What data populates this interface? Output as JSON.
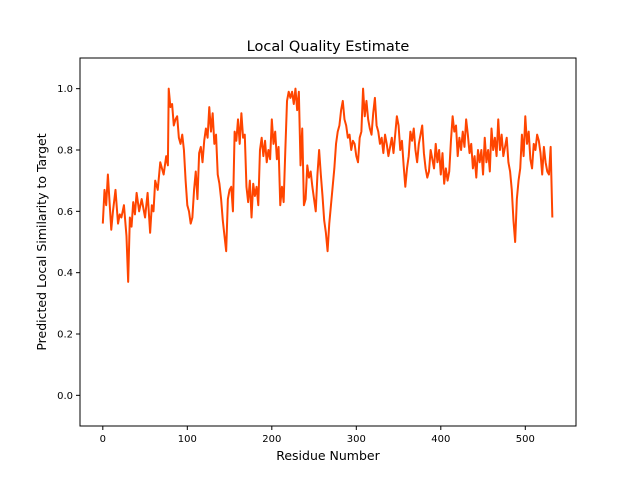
{
  "chart_data": {
    "type": "line",
    "title": "Local Quality Estimate",
    "xlabel": "Residue Number",
    "ylabel": "Predicted Local Similarity to Target",
    "xlim": [
      -27,
      560
    ],
    "ylim": [
      -0.1,
      1.1
    ],
    "xticks": [
      0,
      100,
      200,
      300,
      400,
      500
    ],
    "yticks": [
      0.0,
      0.2,
      0.4,
      0.6,
      0.8,
      1.0
    ],
    "series": [
      {
        "color": "#ff4500",
        "x": [
          0,
          2,
          4,
          6,
          8,
          10,
          12,
          15,
          18,
          20,
          22,
          25,
          28,
          30,
          32,
          34,
          36,
          38,
          40,
          43,
          46,
          50,
          53,
          56,
          58,
          60,
          62,
          65,
          68,
          70,
          72,
          75,
          77,
          78,
          80,
          82,
          84,
          86,
          88,
          90,
          92,
          94,
          96,
          98,
          100,
          102,
          104,
          106,
          108,
          110,
          112,
          114,
          116,
          118,
          120,
          122,
          124,
          126,
          128,
          130,
          132,
          134,
          136,
          138,
          140,
          142,
          144,
          146,
          148,
          150,
          152,
          154,
          156,
          158,
          160,
          162,
          164,
          166,
          168,
          170,
          172,
          174,
          176,
          178,
          180,
          182,
          184,
          186,
          188,
          190,
          192,
          194,
          196,
          198,
          200,
          202,
          204,
          206,
          208,
          210,
          212,
          214,
          216,
          218,
          220,
          222,
          224,
          226,
          228,
          230,
          232,
          234,
          236,
          238,
          240,
          242,
          244,
          246,
          248,
          250,
          252,
          254,
          256,
          258,
          260,
          262,
          264,
          266,
          268,
          270,
          272,
          274,
          276,
          278,
          280,
          282,
          284,
          286,
          288,
          290,
          292,
          294,
          296,
          298,
          300,
          302,
          304,
          306,
          308,
          310,
          312,
          314,
          316,
          318,
          320,
          322,
          324,
          326,
          328,
          330,
          332,
          334,
          336,
          338,
          340,
          342,
          344,
          346,
          348,
          350,
          352,
          354,
          356,
          358,
          360,
          362,
          364,
          366,
          368,
          370,
          372,
          374,
          376,
          378,
          380,
          382,
          384,
          386,
          388,
          390,
          392,
          394,
          396,
          398,
          400,
          402,
          404,
          406,
          408,
          410,
          412,
          414,
          416,
          418,
          420,
          422,
          424,
          426,
          428,
          430,
          432,
          434,
          436,
          438,
          440,
          442,
          444,
          446,
          448,
          450,
          452,
          454,
          456,
          458,
          460,
          462,
          464,
          466,
          468,
          470,
          472,
          474,
          476,
          478,
          480,
          482,
          484,
          486,
          488,
          490,
          492,
          494,
          496,
          498,
          500,
          502,
          504,
          506,
          508,
          510,
          512,
          514,
          516,
          518,
          520,
          522,
          524,
          526,
          528,
          530,
          532
        ],
        "y": [
          0.56,
          0.67,
          0.62,
          0.72,
          0.63,
          0.54,
          0.6,
          0.67,
          0.56,
          0.59,
          0.58,
          0.62,
          0.52,
          0.37,
          0.58,
          0.55,
          0.63,
          0.59,
          0.66,
          0.6,
          0.64,
          0.58,
          0.66,
          0.53,
          0.62,
          0.6,
          0.7,
          0.67,
          0.76,
          0.74,
          0.72,
          0.78,
          0.75,
          1.0,
          0.94,
          0.95,
          0.88,
          0.9,
          0.91,
          0.84,
          0.82,
          0.85,
          0.8,
          0.7,
          0.62,
          0.6,
          0.56,
          0.58,
          0.67,
          0.73,
          0.64,
          0.79,
          0.81,
          0.76,
          0.83,
          0.87,
          0.84,
          0.94,
          0.86,
          0.92,
          0.82,
          0.85,
          0.72,
          0.69,
          0.64,
          0.57,
          0.52,
          0.47,
          0.64,
          0.67,
          0.68,
          0.6,
          0.86,
          0.83,
          0.9,
          0.82,
          0.92,
          0.84,
          0.85,
          0.68,
          0.63,
          0.7,
          0.58,
          0.69,
          0.65,
          0.68,
          0.62,
          0.8,
          0.84,
          0.78,
          0.83,
          0.76,
          0.8,
          0.77,
          0.9,
          0.82,
          0.86,
          0.77,
          0.81,
          0.62,
          0.68,
          0.63,
          0.8,
          0.96,
          0.99,
          0.97,
          0.99,
          0.95,
          1.0,
          0.93,
          0.99,
          0.75,
          0.87,
          0.62,
          0.64,
          0.75,
          0.71,
          0.73,
          0.68,
          0.64,
          0.6,
          0.72,
          0.8,
          0.72,
          0.65,
          0.57,
          0.53,
          0.47,
          0.56,
          0.62,
          0.68,
          0.74,
          0.82,
          0.86,
          0.88,
          0.93,
          0.96,
          0.9,
          0.88,
          0.84,
          0.85,
          0.8,
          0.83,
          0.82,
          0.78,
          0.76,
          0.84,
          0.86,
          1.0,
          0.91,
          0.96,
          0.9,
          0.87,
          0.85,
          0.92,
          0.97,
          0.88,
          0.86,
          0.82,
          0.84,
          0.79,
          0.85,
          0.82,
          0.78,
          0.81,
          0.84,
          0.79,
          0.85,
          0.91,
          0.88,
          0.8,
          0.83,
          0.75,
          0.68,
          0.74,
          0.78,
          0.86,
          0.83,
          0.87,
          0.8,
          0.76,
          0.82,
          0.85,
          0.88,
          0.79,
          0.74,
          0.71,
          0.73,
          0.8,
          0.77,
          0.74,
          0.82,
          0.76,
          0.8,
          0.72,
          0.79,
          0.69,
          0.74,
          0.7,
          0.73,
          0.83,
          0.91,
          0.86,
          0.88,
          0.78,
          0.84,
          0.8,
          0.86,
          0.81,
          0.9,
          0.85,
          0.79,
          0.82,
          0.74,
          0.78,
          0.71,
          0.8,
          0.76,
          0.8,
          0.72,
          0.84,
          0.76,
          0.8,
          0.73,
          0.87,
          0.8,
          0.84,
          0.78,
          0.9,
          0.8,
          0.85,
          0.78,
          0.81,
          0.84,
          0.76,
          0.73,
          0.67,
          0.57,
          0.5,
          0.64,
          0.7,
          0.74,
          0.85,
          0.78,
          0.91,
          0.82,
          0.86,
          0.77,
          0.74,
          0.82,
          0.8,
          0.85,
          0.83,
          0.79,
          0.72,
          0.81,
          0.76,
          0.73,
          0.72,
          0.81,
          0.58
        ]
      }
    ]
  }
}
